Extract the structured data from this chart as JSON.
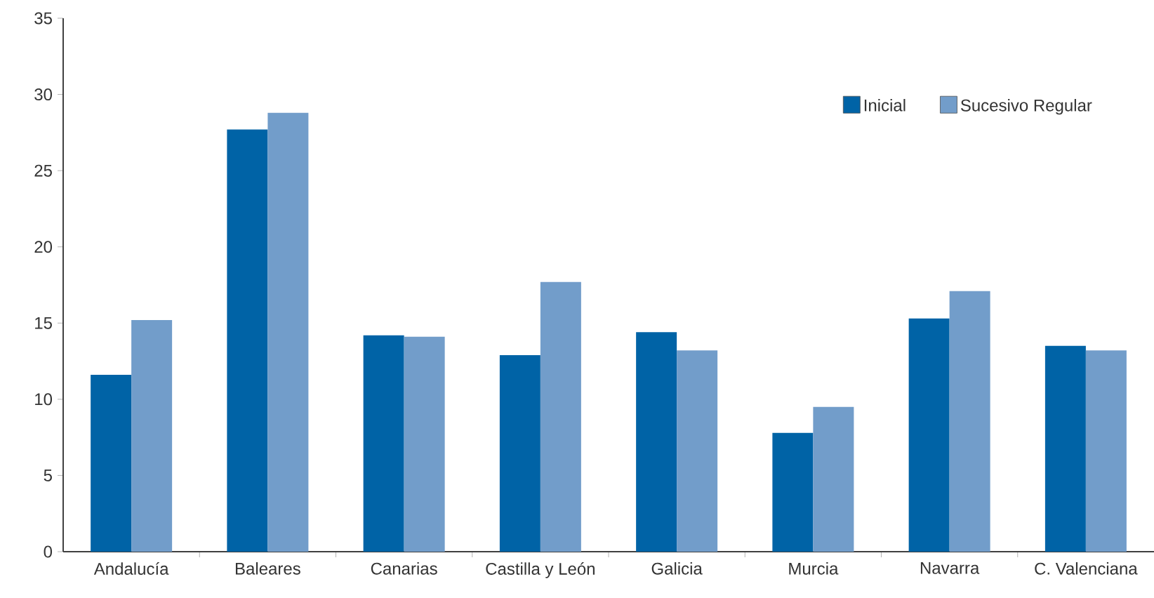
{
  "chart_data": {
    "type": "bar",
    "categories": [
      "Andalucía",
      "Baleares",
      "Canarias",
      "Castilla y León",
      "Galicia",
      "Murcia",
      "Navarra",
      "C. Valenciana"
    ],
    "series": [
      {
        "name": "Inicial",
        "color": "#0063a6",
        "values": [
          11.6,
          27.7,
          14.2,
          12.9,
          14.4,
          7.8,
          15.3,
          13.5
        ]
      },
      {
        "name": "Sucesivo Regular",
        "color": "#729dca",
        "values": [
          15.2,
          28.8,
          14.1,
          17.7,
          13.2,
          9.5,
          17.1,
          13.2
        ]
      }
    ],
    "ylim": [
      0,
      35
    ],
    "yticks": [
      0,
      5,
      10,
      15,
      20,
      25,
      30,
      35
    ],
    "grid": false,
    "legend": "top right"
  }
}
